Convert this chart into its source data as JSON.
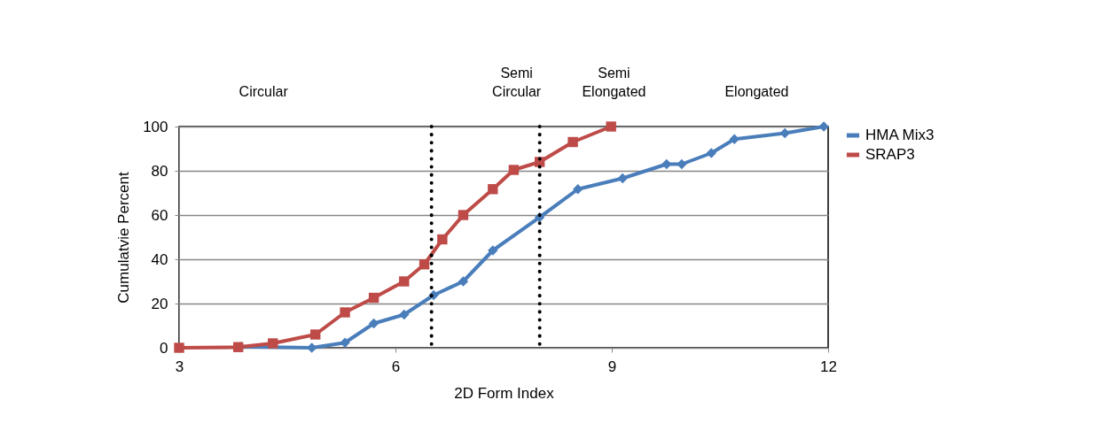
{
  "chart_data": {
    "type": "line",
    "xlabel": "2D Form Index",
    "ylabel": "Cumulatvie Percent",
    "xlim": [
      3,
      12
    ],
    "xticks": [
      3,
      6,
      9,
      12
    ],
    "ylim": [
      0,
      100
    ],
    "yticks": [
      0,
      20,
      40,
      60,
      80,
      100
    ],
    "grid": "y",
    "legend": "right",
    "annotations": [
      "Circular",
      "Semi\nCircular",
      "Semi\nElongated",
      "Elongated"
    ],
    "ref_lines": [
      {
        "axis": "x",
        "value": 6.5,
        "color": "#000000",
        "line_style": "dotted"
      },
      {
        "axis": "x",
        "value": 8.0,
        "color": "#000000",
        "line_style": "dotted"
      }
    ],
    "series": [
      {
        "name": "HMA Mix3",
        "color": "#4a7ebb",
        "marker": "diamond",
        "x": [
          3.85,
          4.84,
          5.3,
          5.7,
          6.12,
          6.53,
          6.94,
          7.35,
          8.0,
          8.53,
          9.15,
          9.76,
          9.97,
          10.38,
          10.7,
          11.4,
          11.94
        ],
        "values": [
          0.5,
          0,
          2.3,
          11,
          15,
          23.8,
          30,
          44,
          59,
          71.7,
          76.6,
          83,
          83,
          88,
          94.3,
          97,
          100
        ]
      },
      {
        "name": "SRAP3",
        "color": "#be4b48",
        "marker": "square",
        "x": [
          3.0,
          3.82,
          4.3,
          4.89,
          5.3,
          5.7,
          6.12,
          6.4,
          6.65,
          6.94,
          7.35,
          7.64,
          8.0,
          8.46,
          8.99
        ],
        "values": [
          0,
          0.3,
          2,
          6,
          16,
          22.6,
          30,
          37.7,
          49,
          60,
          71.7,
          80.4,
          84,
          93,
          100
        ]
      }
    ]
  }
}
